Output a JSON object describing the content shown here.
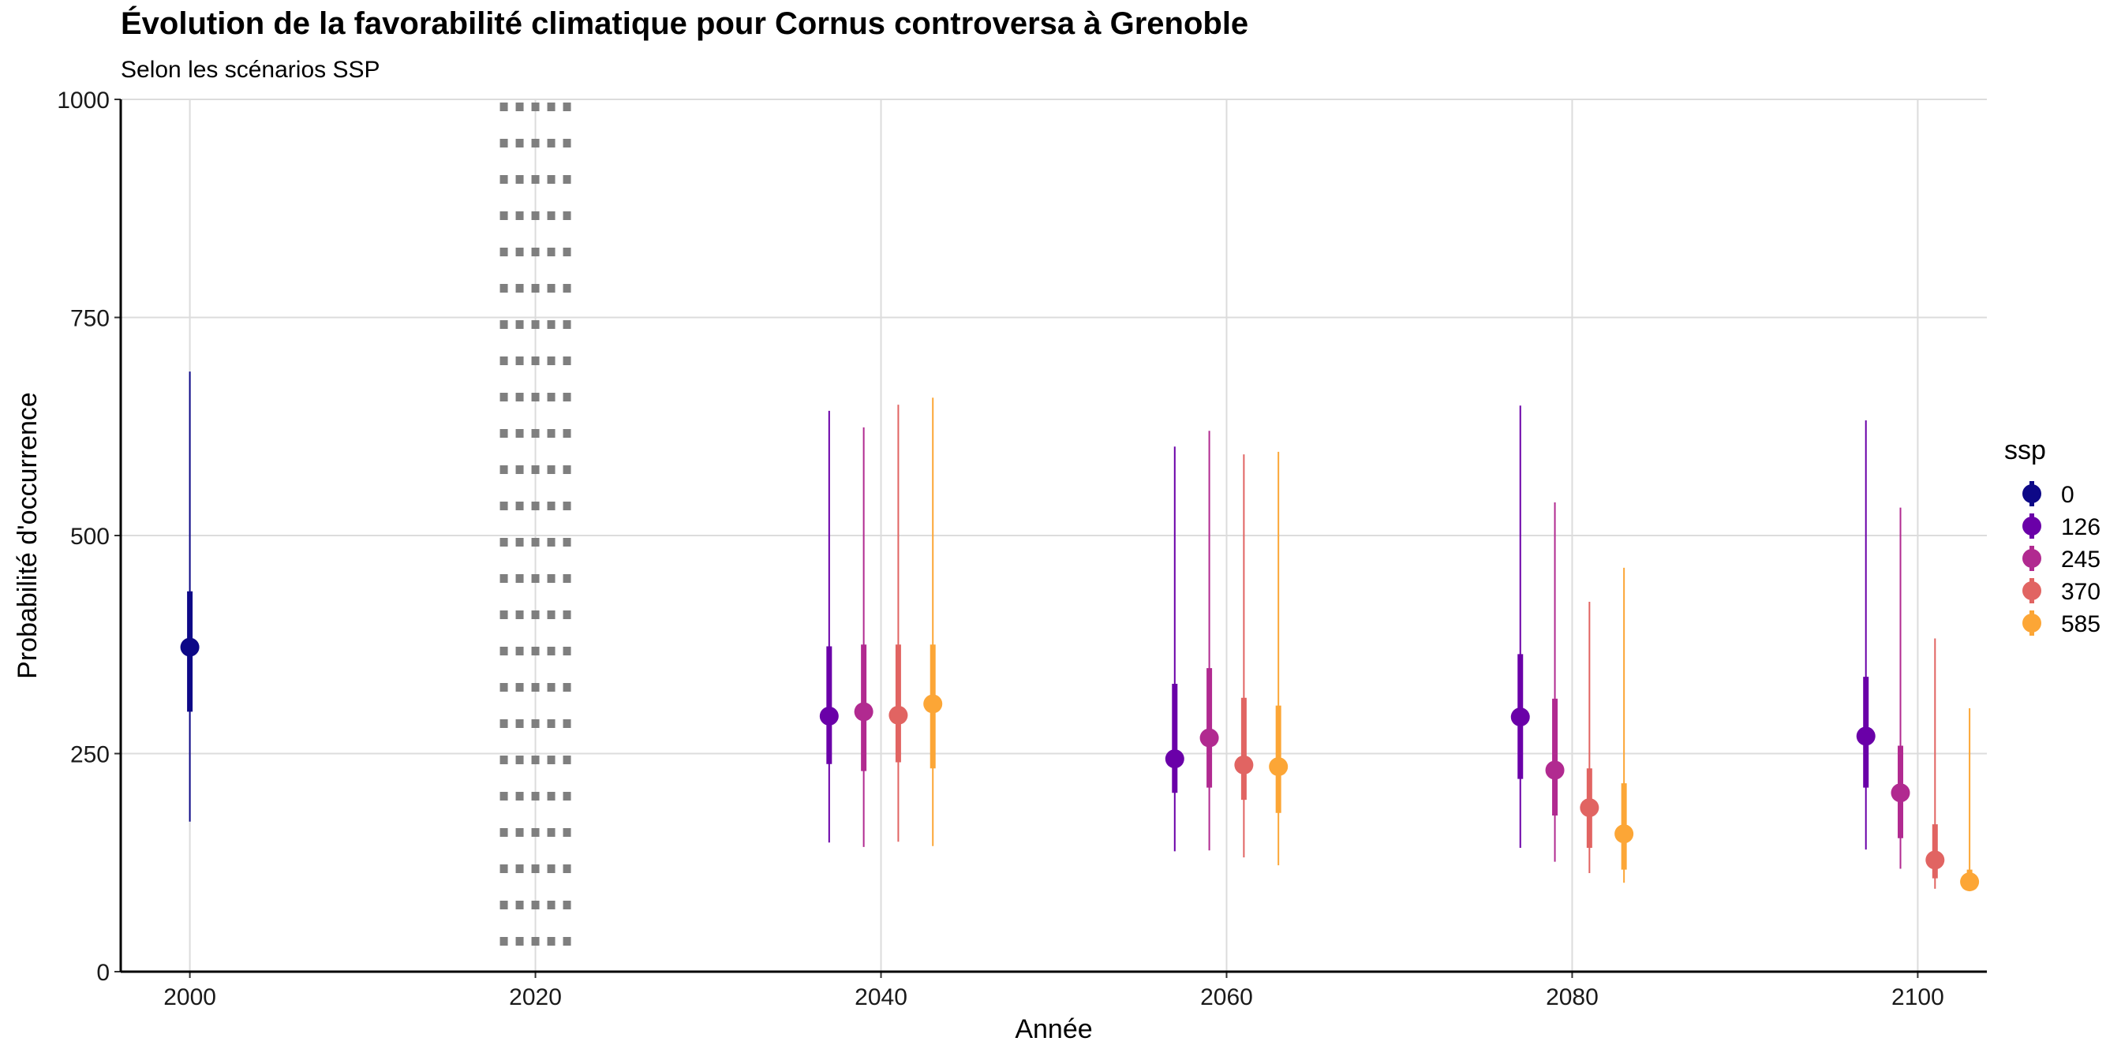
{
  "chart_data": {
    "type": "pointrange",
    "title": "Évolution de la favorabilité climatique pour Cornus controversa à Grenoble",
    "subtitle": "Selon les scénarios SSP",
    "xlabel": "Année",
    "ylabel": "Probabilité d'occurrence",
    "xlim": [
      1996,
      2104
    ],
    "ylim": [
      0,
      1000
    ],
    "x_ticks": [
      2000,
      2020,
      2040,
      2060,
      2080,
      2100
    ],
    "y_ticks": [
      0,
      250,
      500,
      750,
      1000
    ],
    "grid": true,
    "reference_line": {
      "x": 2020,
      "style": "dotted",
      "color": "#7f7f7f"
    },
    "legend": {
      "title": "ssp",
      "position": "right"
    },
    "series": [
      {
        "name": "0",
        "color": "#0d0887",
        "points": [
          {
            "x": 2000,
            "y": 372,
            "inner": [
              298,
              436
            ],
            "outer": [
              172,
              688
            ]
          }
        ]
      },
      {
        "name": "126",
        "color": "#6a00a8",
        "points": [
          {
            "x": 2037,
            "y": 293,
            "inner": [
              238,
              373
            ],
            "outer": [
              148,
              643
            ]
          },
          {
            "x": 2057,
            "y": 244,
            "inner": [
              205,
              330
            ],
            "outer": [
              138,
              602
            ]
          },
          {
            "x": 2077,
            "y": 292,
            "inner": [
              221,
              364
            ],
            "outer": [
              142,
              649
            ]
          },
          {
            "x": 2097,
            "y": 270,
            "inner": [
              211,
              338
            ],
            "outer": [
              140,
              632
            ]
          }
        ]
      },
      {
        "name": "245",
        "color": "#b12a90",
        "points": [
          {
            "x": 2039,
            "y": 298,
            "inner": [
              230,
              375
            ],
            "outer": [
              143,
              624
            ]
          },
          {
            "x": 2059,
            "y": 268,
            "inner": [
              211,
              348
            ],
            "outer": [
              139,
              620
            ]
          },
          {
            "x": 2079,
            "y": 231,
            "inner": [
              179,
              313
            ],
            "outer": [
              126,
              538
            ]
          },
          {
            "x": 2099,
            "y": 205,
            "inner": [
              153,
              259
            ],
            "outer": [
              118,
              532
            ]
          }
        ]
      },
      {
        "name": "370",
        "color": "#e16462",
        "points": [
          {
            "x": 2041,
            "y": 294,
            "inner": [
              240,
              375
            ],
            "outer": [
              149,
              650
            ]
          },
          {
            "x": 2061,
            "y": 237,
            "inner": [
              197,
              314
            ],
            "outer": [
              131,
              593
            ]
          },
          {
            "x": 2081,
            "y": 188,
            "inner": [
              142,
              233
            ],
            "outer": [
              113,
              424
            ]
          },
          {
            "x": 2101,
            "y": 128,
            "inner": [
              107,
              169
            ],
            "outer": [
              95,
              382
            ]
          }
        ]
      },
      {
        "name": "585",
        "color": "#fca636",
        "points": [
          {
            "x": 2043,
            "y": 307,
            "inner": [
              233,
              375
            ],
            "outer": [
              144,
              658
            ]
          },
          {
            "x": 2063,
            "y": 235,
            "inner": [
              182,
              305
            ],
            "outer": [
              122,
              596
            ]
          },
          {
            "x": 2083,
            "y": 158,
            "inner": [
              117,
              216
            ],
            "outer": [
              102,
              463
            ]
          },
          {
            "x": 2103,
            "y": 103,
            "inner": [
              95,
              117
            ],
            "outer": [
              93,
              302
            ]
          }
        ]
      }
    ]
  }
}
